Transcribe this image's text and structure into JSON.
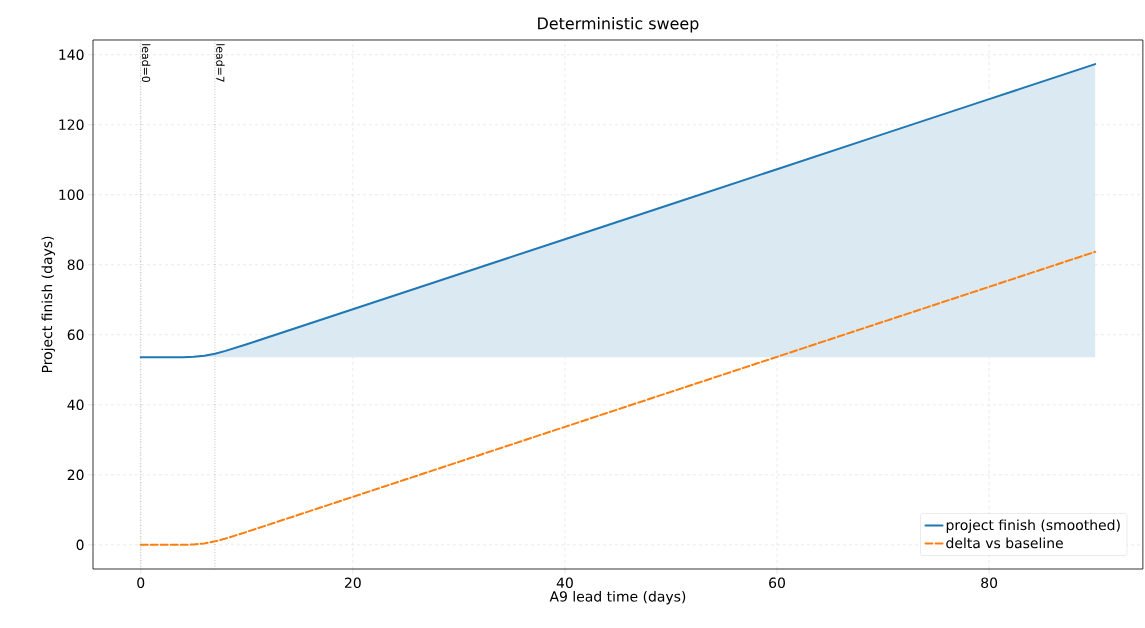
{
  "chart_data": {
    "type": "line",
    "title": "Deterministic sweep",
    "xlabel": "A9 lead time (days)",
    "ylabel": "Project finish (days)",
    "x": [
      0,
      2,
      4,
      5,
      6,
      7,
      8,
      10,
      20,
      30,
      40,
      50,
      60,
      70,
      80,
      90
    ],
    "series": [
      {
        "name": "project finish (smoothed)",
        "color": "#1f77b4",
        "line_style": "solid",
        "values": [
          53.6,
          53.6,
          53.6,
          53.7,
          54.0,
          54.6,
          55.4,
          57.3,
          67.3,
          77.3,
          87.3,
          97.3,
          107.3,
          117.3,
          127.3,
          137.3
        ],
        "lower": [
          53.6,
          53.6,
          53.6,
          53.6,
          53.6,
          53.6,
          53.6,
          53.6,
          53.6,
          53.6,
          53.6,
          53.6,
          53.6,
          53.6,
          53.6,
          53.6
        ],
        "upper": [
          53.6,
          53.6,
          53.6,
          53.7,
          54.0,
          54.6,
          55.4,
          57.3,
          67.3,
          77.3,
          87.3,
          97.3,
          107.3,
          117.3,
          127.3,
          137.3
        ]
      },
      {
        "name": "delta vs baseline",
        "color": "#ff7f0e",
        "line_style": "dashed",
        "values": [
          0,
          0,
          0,
          0.1,
          0.4,
          1.0,
          1.8,
          3.7,
          13.7,
          23.7,
          33.7,
          43.7,
          53.7,
          63.7,
          73.7,
          83.7
        ]
      }
    ],
    "xlim": [
      -4.5,
      94.5
    ],
    "ylim": [
      -6.9,
      144.2
    ],
    "xticks": [
      0,
      20,
      40,
      60,
      80
    ],
    "yticks": [
      0,
      20,
      40,
      60,
      80,
      100,
      120,
      140
    ],
    "ref_lines": [
      {
        "axis": "x",
        "value": 0,
        "label": "lead=0",
        "color": "#888888",
        "line_style": "dotted"
      },
      {
        "axis": "x",
        "value": 7,
        "label": "lead=7",
        "color": "#888888",
        "line_style": "dotted"
      }
    ],
    "grid": true,
    "legend": "bottom right",
    "marker": "none"
  }
}
